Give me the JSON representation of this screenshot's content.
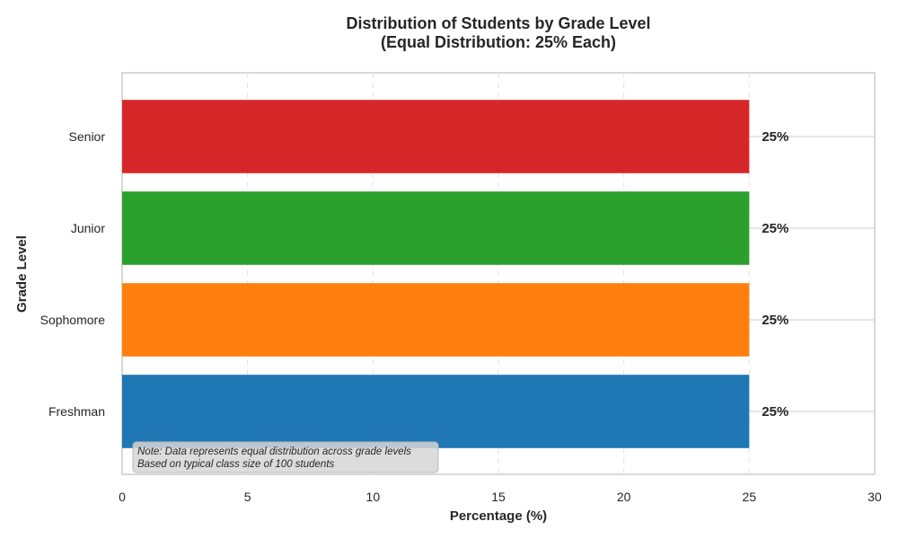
{
  "chart_data": {
    "type": "bar",
    "orientation": "horizontal",
    "title": "Distribution of Students by Grade Level",
    "subtitle": "(Equal Distribution: 25% Each)",
    "xlabel": "Percentage (%)",
    "ylabel": "Grade Level",
    "categories": [
      "Freshman",
      "Sophomore",
      "Junior",
      "Senior"
    ],
    "values": [
      25,
      25,
      25,
      25
    ],
    "data_labels": [
      "25%",
      "25%",
      "25%",
      "25%"
    ],
    "colors": [
      "#1f77b4",
      "#ff7f0e",
      "#2ca02c",
      "#d62728"
    ],
    "xlim": [
      0,
      30
    ],
    "xticks": [
      0,
      5,
      10,
      15,
      20,
      25,
      30
    ],
    "grid": "dashed vertical gridlines, solid horizontal gridlines",
    "note_lines": [
      "Note: Data represents equal distribution across grade levels",
      "Based on typical class size of 100 students"
    ]
  }
}
